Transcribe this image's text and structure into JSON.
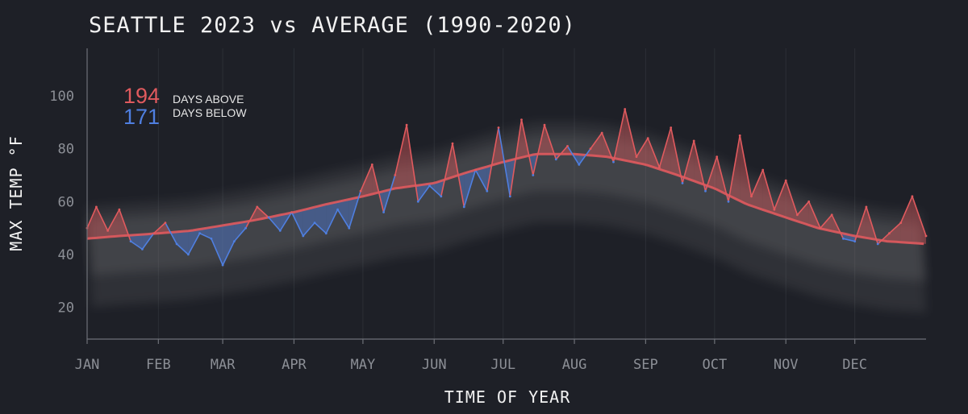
{
  "chart_data": {
    "type": "line",
    "title": "SEATTLE 2023 vs AVERAGE (1990-2020)",
    "xlabel": "TIME OF YEAR",
    "ylabel": "MAX TEMP °F",
    "x_ticks": [
      "JAN",
      "FEB",
      "MAR",
      "APR",
      "MAY",
      "JUN",
      "JUL",
      "AUG",
      "SEP",
      "OCT",
      "NOV",
      "DEC"
    ],
    "y_ticks": [
      20,
      40,
      60,
      80,
      100
    ],
    "xlim": [
      1,
      366
    ],
    "ylim": [
      8,
      118
    ],
    "grid": "vertical",
    "legend_position": "top-left",
    "legend": {
      "above_count": "194",
      "above_label": "DAYS ABOVE",
      "below_count": "171",
      "below_label": "DAYS BELOW"
    },
    "colors": {
      "background": "#1e2027",
      "above": "#e05a5e",
      "below": "#4f7fe0",
      "average": "#e05a5e",
      "history": "#8a8a8a"
    },
    "series": [
      {
        "name": "Average",
        "x_day": [
          1,
          15,
          32,
          46,
          60,
          74,
          91,
          105,
          121,
          135,
          152,
          166,
          182,
          196,
          213,
          227,
          244,
          258,
          274,
          288,
          305,
          319,
          335,
          349,
          366
        ],
        "values": [
          46,
          47,
          48,
          49,
          51,
          53,
          56,
          59,
          62,
          65,
          67,
          71,
          75,
          78,
          78,
          77,
          74,
          70,
          65,
          59,
          54,
          50,
          47,
          45,
          44
        ]
      },
      {
        "name": "2023",
        "x_day": [
          1,
          5,
          10,
          15,
          20,
          25,
          30,
          35,
          40,
          45,
          50,
          55,
          60,
          65,
          70,
          75,
          80,
          85,
          90,
          95,
          100,
          105,
          110,
          115,
          120,
          125,
          130,
          135,
          140,
          145,
          150,
          155,
          160,
          165,
          170,
          175,
          180,
          185,
          190,
          195,
          200,
          205,
          210,
          215,
          220,
          225,
          230,
          235,
          240,
          245,
          250,
          255,
          260,
          265,
          270,
          275,
          280,
          285,
          290,
          295,
          300,
          305,
          310,
          315,
          320,
          325,
          330,
          335,
          340,
          345,
          350,
          355,
          360,
          366
        ],
        "values": [
          50,
          58,
          49,
          57,
          45,
          42,
          48,
          52,
          44,
          40,
          48,
          46,
          36,
          45,
          50,
          58,
          54,
          49,
          56,
          47,
          52,
          48,
          57,
          50,
          64,
          74,
          56,
          70,
          89,
          60,
          66,
          62,
          82,
          58,
          72,
          64,
          88,
          62,
          91,
          70,
          89,
          76,
          81,
          74,
          80,
          86,
          75,
          95,
          77,
          84,
          73,
          88,
          67,
          83,
          64,
          77,
          60,
          85,
          62,
          72,
          57,
          68,
          55,
          60,
          50,
          55,
          46,
          45,
          58,
          44,
          48,
          52,
          62,
          47
        ]
      }
    ]
  }
}
